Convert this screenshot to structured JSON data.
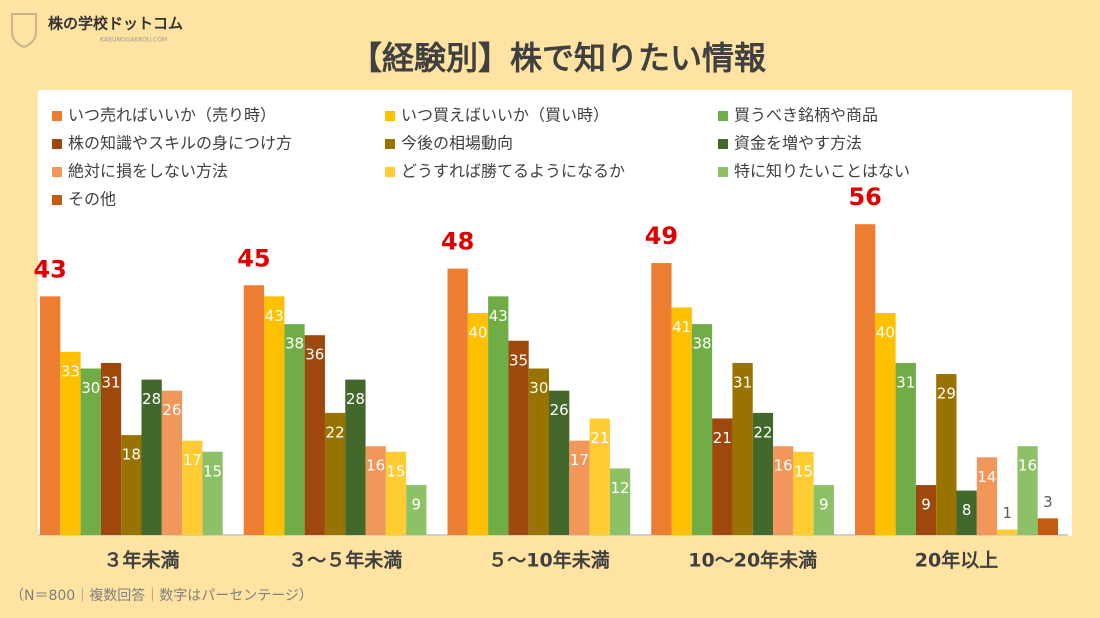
{
  "header": {
    "logo": "株の学校ドットコム",
    "logo_sub": "KABUNOGAKKOU.COM"
  },
  "chart_data": {
    "type": "bar",
    "title": "【経験別】株で知りたい情報",
    "categories": [
      "３年未満",
      "３～５年未満",
      "５～10年未満",
      "10～20年未満",
      "20年以上"
    ],
    "series": [
      {
        "name": "いつ売ればいいか（売り時）",
        "color": "#ED7D31",
        "values": [
          43,
          45,
          48,
          49,
          56
        ]
      },
      {
        "name": "いつ買えばいいか（買い時）",
        "color": "#FFC000",
        "values": [
          33,
          43,
          40,
          41,
          40
        ]
      },
      {
        "name": "買うべき銘柄や商品",
        "color": "#70AD47",
        "values": [
          30,
          38,
          43,
          38,
          31
        ]
      },
      {
        "name": "株の知識やスキルの身につけ方",
        "color": "#9E480E",
        "values": [
          31,
          36,
          35,
          21,
          9
        ]
      },
      {
        "name": "今後の相場動向",
        "color": "#997300",
        "values": [
          18,
          22,
          30,
          31,
          29
        ]
      },
      {
        "name": "資金を増やす方法",
        "color": "#43682B",
        "values": [
          28,
          28,
          26,
          22,
          8
        ]
      },
      {
        "name": "絶対に損をしない方法",
        "color": "#F1975A",
        "values": [
          26,
          16,
          17,
          16,
          14
        ]
      },
      {
        "name": "どうすれば勝てるようになるか",
        "color": "#FFCD33",
        "values": [
          17,
          15,
          21,
          15,
          1
        ]
      },
      {
        "name": "特に知りたいことはない",
        "color": "#8CC168",
        "values": [
          15,
          9,
          12,
          9,
          16
        ]
      },
      {
        "name": "その他",
        "color": "#C55A11",
        "values": [
          null,
          null,
          null,
          null,
          3
        ]
      }
    ],
    "note": "（N＝800｜複数回答｜数字はパーセンテージ）"
  }
}
